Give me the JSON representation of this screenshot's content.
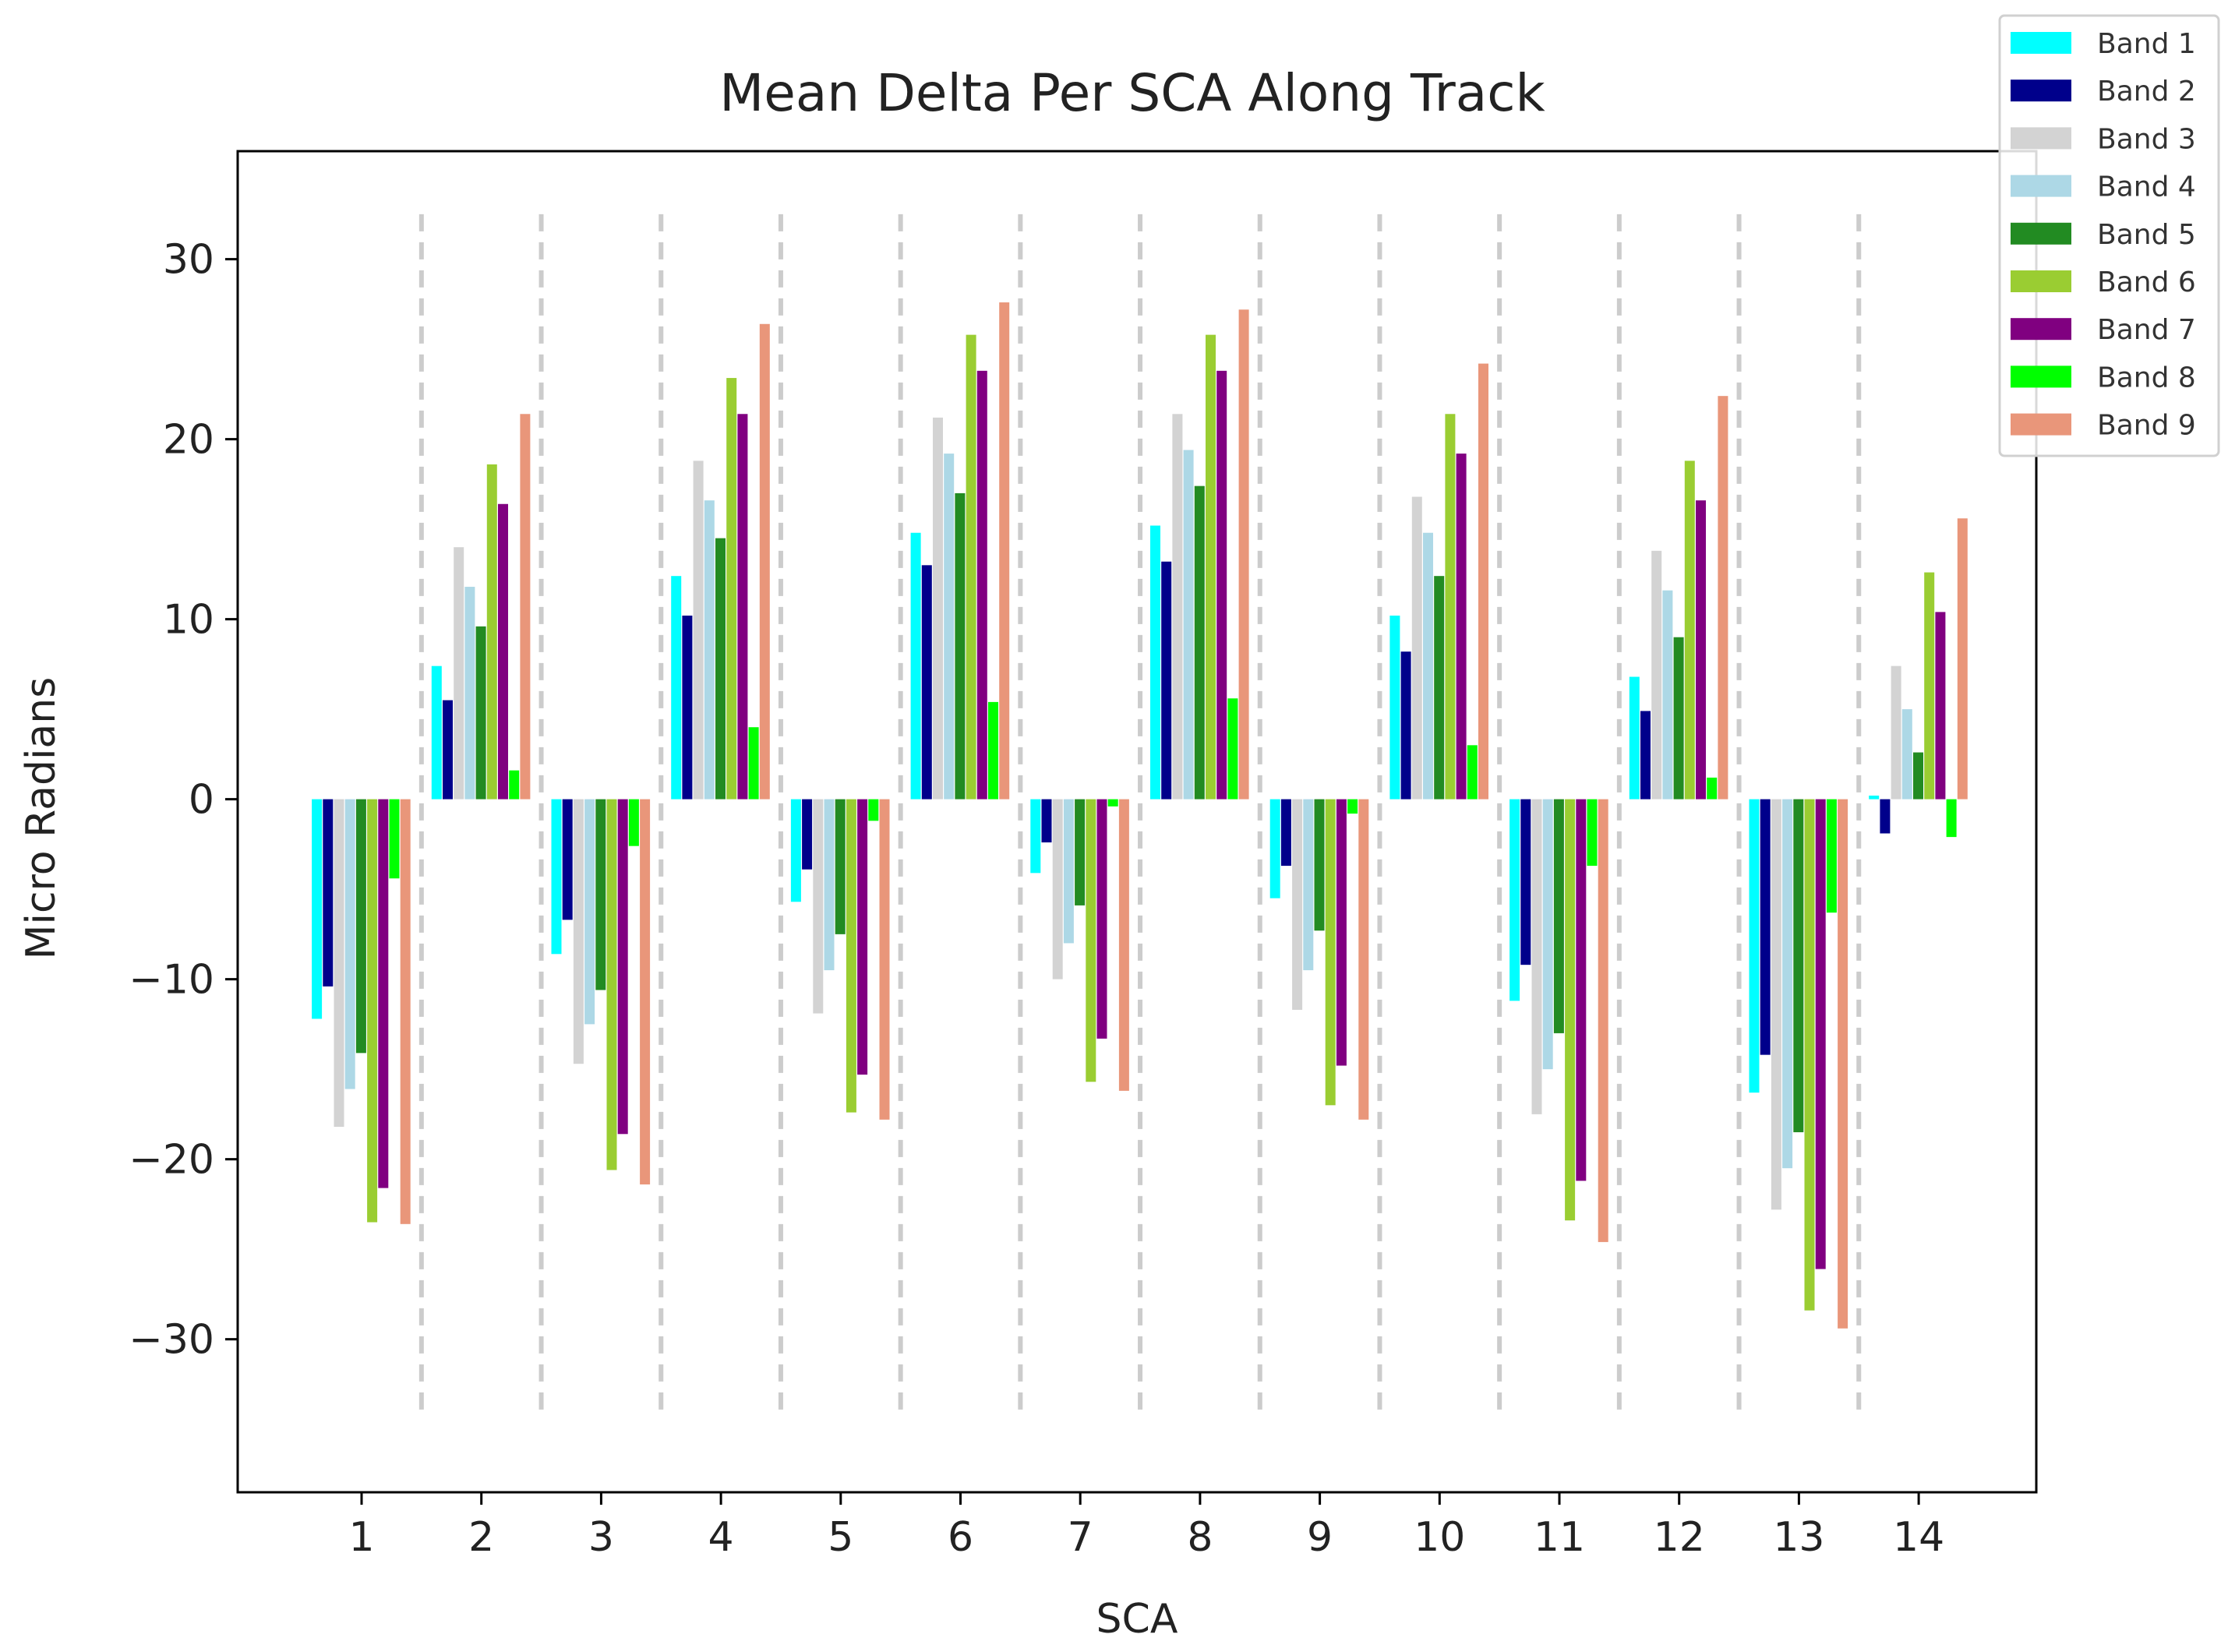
{
  "chart_data": {
    "type": "bar",
    "title": "Mean Delta Per SCA Along Track",
    "xlabel": "SCA",
    "ylabel": "Micro Radians",
    "ylim": [
      -38.5,
      36
    ],
    "yticks": [
      30,
      20,
      10,
      0,
      -10,
      -20,
      -30
    ],
    "ytick_labels": [
      "30",
      "20",
      "10",
      "0",
      "−10",
      "−20",
      "−30"
    ],
    "categories": [
      "1",
      "2",
      "3",
      "4",
      "5",
      "6",
      "7",
      "8",
      "9",
      "10",
      "11",
      "12",
      "13",
      "14"
    ],
    "separators": true,
    "legend_position": "top-right",
    "series": [
      {
        "name": "Band 1",
        "color": "#00ffff",
        "values": [
          -12.2,
          7.4,
          -8.6,
          12.4,
          -5.7,
          14.8,
          -4.1,
          15.2,
          -5.5,
          10.2,
          -11.2,
          6.8,
          -16.3,
          0.2
        ]
      },
      {
        "name": "Band 2",
        "color": "#00008b",
        "values": [
          -10.4,
          5.5,
          -6.7,
          10.2,
          -3.9,
          13.0,
          -2.4,
          13.2,
          -3.7,
          8.2,
          -9.2,
          4.9,
          -14.2,
          -1.9
        ]
      },
      {
        "name": "Band 3",
        "color": "#d3d3d3",
        "values": [
          -18.2,
          14.0,
          -14.7,
          18.8,
          -11.9,
          21.2,
          -10.0,
          21.4,
          -11.7,
          16.8,
          -17.5,
          13.8,
          -22.8,
          7.4
        ]
      },
      {
        "name": "Band 4",
        "color": "#add8e6",
        "values": [
          -16.1,
          11.8,
          -12.5,
          16.6,
          -9.5,
          19.2,
          -8.0,
          19.4,
          -9.5,
          14.8,
          -15.0,
          11.6,
          -20.5,
          5.0
        ]
      },
      {
        "name": "Band 5",
        "color": "#228b22",
        "values": [
          -14.1,
          9.6,
          -10.6,
          14.5,
          -7.5,
          17.0,
          -5.9,
          17.4,
          -7.3,
          12.4,
          -13.0,
          9.0,
          -18.5,
          2.6
        ]
      },
      {
        "name": "Band 6",
        "color": "#9acd32",
        "values": [
          -23.5,
          18.6,
          -20.6,
          23.4,
          -17.4,
          25.8,
          -15.7,
          25.8,
          -17.0,
          21.4,
          -23.4,
          18.8,
          -28.4,
          12.6
        ]
      },
      {
        "name": "Band 7",
        "color": "#800080",
        "values": [
          -21.6,
          16.4,
          -18.6,
          21.4,
          -15.3,
          23.8,
          -13.3,
          23.8,
          -14.8,
          19.2,
          -21.2,
          16.6,
          -26.1,
          10.4
        ]
      },
      {
        "name": "Band 8",
        "color": "#00ff00",
        "values": [
          -4.4,
          1.6,
          -2.6,
          4.0,
          -1.2,
          5.4,
          -0.4,
          5.6,
          -0.8,
          3.0,
          -3.7,
          1.2,
          -6.3,
          -2.1
        ]
      },
      {
        "name": "Band 9",
        "color": "#e9967a",
        "values": [
          -23.6,
          21.4,
          -21.4,
          26.4,
          -17.8,
          27.6,
          -16.2,
          27.2,
          -17.8,
          24.2,
          -24.6,
          22.4,
          -29.4,
          15.6
        ]
      }
    ]
  }
}
